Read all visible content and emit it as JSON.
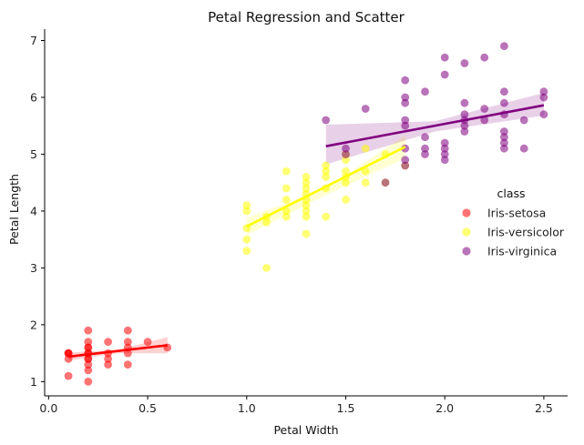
{
  "chart_data": {
    "type": "scatter",
    "title": "Petal Regression and Scatter",
    "xlabel": "Petal Width",
    "ylabel": "Petal Length",
    "xlim": [
      -0.02,
      2.62
    ],
    "ylim": [
      0.75,
      7.2
    ],
    "xticks": [
      0.0,
      0.5,
      1.0,
      1.5,
      2.0,
      2.5
    ],
    "xtick_labels": [
      "0.0",
      "0.5",
      "1.0",
      "1.5",
      "2.0",
      "2.5"
    ],
    "yticks": [
      1,
      2,
      3,
      4,
      5,
      6,
      7
    ],
    "ytick_labels": [
      "1",
      "2",
      "3",
      "4",
      "5",
      "6",
      "7"
    ],
    "grid": false,
    "legend": {
      "title": "class",
      "placement": "right"
    },
    "series": [
      {
        "name": "Iris-setosa",
        "color": "#ff0000",
        "points": [
          [
            0.1,
            1.1
          ],
          [
            0.1,
            1.4
          ],
          [
            0.1,
            1.5
          ],
          [
            0.1,
            1.5
          ],
          [
            0.1,
            1.5
          ],
          [
            0.2,
            1.0
          ],
          [
            0.2,
            1.2
          ],
          [
            0.2,
            1.3
          ],
          [
            0.2,
            1.4
          ],
          [
            0.2,
            1.4
          ],
          [
            0.2,
            1.5
          ],
          [
            0.2,
            1.5
          ],
          [
            0.2,
            1.6
          ],
          [
            0.2,
            1.6
          ],
          [
            0.2,
            1.7
          ],
          [
            0.2,
            1.9
          ],
          [
            0.3,
            1.3
          ],
          [
            0.3,
            1.4
          ],
          [
            0.3,
            1.5
          ],
          [
            0.3,
            1.7
          ],
          [
            0.4,
            1.3
          ],
          [
            0.4,
            1.5
          ],
          [
            0.4,
            1.6
          ],
          [
            0.4,
            1.7
          ],
          [
            0.4,
            1.9
          ],
          [
            0.5,
            1.7
          ],
          [
            0.6,
            1.6
          ]
        ],
        "regression": {
          "x": [
            0.1,
            0.6
          ],
          "y": [
            1.44,
            1.64
          ]
        },
        "band": {
          "x": [
            0.1,
            0.35,
            0.6
          ],
          "lower": [
            1.37,
            1.5,
            1.5
          ],
          "upper": [
            1.51,
            1.56,
            1.78
          ]
        }
      },
      {
        "name": "Iris-versicolor",
        "color": "#ffff00",
        "points": [
          [
            1.0,
            3.3
          ],
          [
            1.0,
            3.5
          ],
          [
            1.0,
            3.7
          ],
          [
            1.0,
            4.0
          ],
          [
            1.0,
            4.1
          ],
          [
            1.1,
            3.0
          ],
          [
            1.1,
            3.8
          ],
          [
            1.1,
            3.9
          ],
          [
            1.2,
            3.9
          ],
          [
            1.2,
            4.0
          ],
          [
            1.2,
            4.2
          ],
          [
            1.2,
            4.4
          ],
          [
            1.2,
            4.7
          ],
          [
            1.3,
            3.6
          ],
          [
            1.3,
            3.9
          ],
          [
            1.3,
            4.0
          ],
          [
            1.3,
            4.1
          ],
          [
            1.3,
            4.2
          ],
          [
            1.3,
            4.3
          ],
          [
            1.3,
            4.4
          ],
          [
            1.3,
            4.5
          ],
          [
            1.3,
            4.6
          ],
          [
            1.4,
            3.9
          ],
          [
            1.4,
            4.4
          ],
          [
            1.4,
            4.6
          ],
          [
            1.4,
            4.7
          ],
          [
            1.4,
            4.8
          ],
          [
            1.5,
            4.2
          ],
          [
            1.5,
            4.5
          ],
          [
            1.5,
            4.6
          ],
          [
            1.5,
            4.7
          ],
          [
            1.5,
            4.9
          ],
          [
            1.5,
            5.0
          ],
          [
            1.6,
            4.5
          ],
          [
            1.6,
            4.7
          ],
          [
            1.6,
            5.1
          ],
          [
            1.7,
            4.5
          ],
          [
            1.7,
            5.0
          ],
          [
            1.8,
            4.8
          ]
        ],
        "regression": {
          "x": [
            1.0,
            1.8
          ],
          "y": [
            3.73,
            5.13
          ]
        },
        "band": {
          "x": [
            1.0,
            1.4,
            1.8
          ],
          "lower": [
            3.58,
            4.28,
            4.93
          ],
          "upper": [
            3.88,
            4.4,
            5.33
          ]
        }
      },
      {
        "name": "Iris-virginica",
        "color": "#800080",
        "points": [
          [
            1.4,
            5.6
          ],
          [
            1.5,
            5.0
          ],
          [
            1.5,
            5.1
          ],
          [
            1.6,
            5.8
          ],
          [
            1.7,
            4.5
          ],
          [
            1.8,
            4.8
          ],
          [
            1.8,
            4.9
          ],
          [
            1.8,
            5.1
          ],
          [
            1.8,
            5.5
          ],
          [
            1.8,
            5.6
          ],
          [
            1.8,
            5.9
          ],
          [
            1.8,
            6.0
          ],
          [
            1.8,
            6.3
          ],
          [
            1.9,
            5.0
          ],
          [
            1.9,
            5.1
          ],
          [
            1.9,
            5.3
          ],
          [
            1.9,
            6.1
          ],
          [
            2.0,
            4.9
          ],
          [
            2.0,
            5.0
          ],
          [
            2.0,
            5.1
          ],
          [
            2.0,
            5.2
          ],
          [
            2.0,
            6.4
          ],
          [
            2.0,
            6.7
          ],
          [
            2.1,
            5.4
          ],
          [
            2.1,
            5.5
          ],
          [
            2.1,
            5.6
          ],
          [
            2.1,
            5.7
          ],
          [
            2.1,
            5.9
          ],
          [
            2.1,
            6.6
          ],
          [
            2.2,
            5.6
          ],
          [
            2.2,
            5.8
          ],
          [
            2.2,
            6.7
          ],
          [
            2.3,
            5.1
          ],
          [
            2.3,
            5.2
          ],
          [
            2.3,
            5.3
          ],
          [
            2.3,
            5.4
          ],
          [
            2.3,
            5.7
          ],
          [
            2.3,
            5.9
          ],
          [
            2.3,
            6.1
          ],
          [
            2.3,
            6.9
          ],
          [
            2.4,
            5.1
          ],
          [
            2.4,
            5.6
          ],
          [
            2.5,
            5.7
          ],
          [
            2.5,
            6.0
          ],
          [
            2.5,
            6.1
          ]
        ],
        "regression": {
          "x": [
            1.4,
            2.5
          ],
          "y": [
            5.14,
            5.86
          ]
        },
        "band": {
          "x": [
            1.4,
            1.95,
            2.5
          ],
          "lower": [
            4.82,
            5.4,
            5.68
          ],
          "upper": [
            5.52,
            5.58,
            6.08
          ]
        }
      }
    ]
  }
}
